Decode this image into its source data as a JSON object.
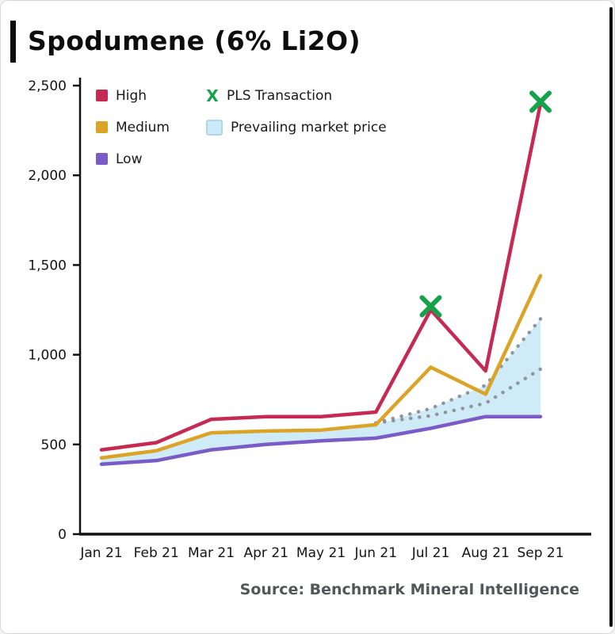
{
  "title": "Spodumene (6% Li2O)",
  "source": "Source: Benchmark Mineral Intelligence",
  "colors": {
    "high": "#C62A52",
    "medium": "#DBA427",
    "low": "#7A5BC7",
    "band_fill": "#CEEAF8",
    "band_edge": "#A9D7EE",
    "dotted": "#8E959C",
    "marker": "#14A24A",
    "axis": "#111111",
    "tick_text": "#141414"
  },
  "legend": {
    "high": "High",
    "medium": "Medium",
    "low": "Low",
    "marker_glyph": "X",
    "marker": "PLS Transaction",
    "band": "Prevailing market price"
  },
  "chart_data": {
    "type": "line",
    "title": "Spodumene (6% Li2O)",
    "xlabel": "",
    "ylabel": "",
    "ylim": [
      0,
      2500
    ],
    "grid": false,
    "legend_position": "top-left-inside",
    "categories": [
      "Jan 21",
      "Feb 21",
      "Mar 21",
      "Apr 21",
      "May 21",
      "Jun 21",
      "Jul 21",
      "Aug 21",
      "Sep 21"
    ],
    "y_ticks": [
      {
        "v": 0,
        "label": "0"
      },
      {
        "v": 500,
        "label": "500"
      },
      {
        "v": 1000,
        "label": "1,000"
      },
      {
        "v": 1500,
        "label": "1,500"
      },
      {
        "v": 2000,
        "label": "2,000"
      },
      {
        "v": 2500,
        "label": "2,500"
      }
    ],
    "series": [
      {
        "name": "Low",
        "color_key": "low",
        "values": [
          390,
          410,
          470,
          500,
          520,
          535,
          590,
          655,
          655
        ]
      },
      {
        "name": "Medium",
        "color_key": "medium",
        "values": [
          425,
          465,
          565,
          575,
          580,
          610,
          930,
          780,
          1440
        ]
      },
      {
        "name": "High",
        "color_key": "high",
        "values": [
          470,
          510,
          640,
          655,
          655,
          680,
          1250,
          910,
          2400
        ]
      }
    ],
    "band": {
      "name": "Prevailing market price",
      "upper": [
        425,
        465,
        565,
        575,
        580,
        610,
        700,
        830,
        1200
      ],
      "lower": [
        390,
        410,
        470,
        500,
        520,
        535,
        590,
        655,
        655
      ]
    },
    "forecast_dotted": [
      {
        "name": "upper",
        "start_index": 5,
        "values": [
          620,
          700,
          830,
          1200
        ]
      },
      {
        "name": "lower",
        "start_index": 5,
        "values": [
          620,
          660,
          730,
          920
        ]
      }
    ],
    "markers": [
      {
        "name": "PLS Transaction",
        "x_index": 6,
        "value": 1270
      },
      {
        "name": "PLS Transaction",
        "x_index": 8,
        "value": 2410
      }
    ]
  }
}
